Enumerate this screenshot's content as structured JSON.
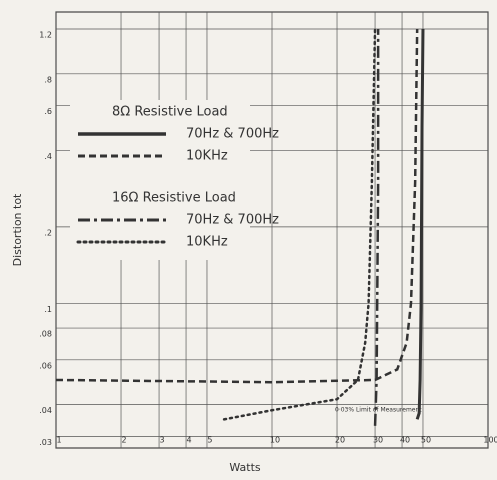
{
  "chart_data": {
    "type": "line",
    "xlabel": "Watts",
    "ylabel": "Distortion tot",
    "log_x": true,
    "log_y": true,
    "grid": true,
    "xlim": [
      1,
      100
    ],
    "ylim": [
      0.027,
      1.4
    ],
    "xticks": [
      1,
      2,
      3,
      4,
      5,
      10,
      20,
      30,
      40,
      50,
      100
    ],
    "yticks": [
      {
        "value": 0.03,
        "label": ".03"
      },
      {
        "value": 0.04,
        "label": ".04"
      },
      {
        "value": 0.06,
        "label": ".06"
      },
      {
        "value": 0.08,
        "label": ".08"
      },
      {
        "value": 0.1,
        "label": ".1"
      },
      {
        "value": 0.2,
        "label": ".2"
      },
      {
        "value": 0.4,
        "label": ".4"
      },
      {
        "value": 0.6,
        "label": ".6"
      },
      {
        "value": 0.8,
        "label": ".8"
      },
      {
        "value": 1.2,
        "label": "1.2"
      }
    ],
    "legend_titles": [
      "8Ω Resistive Load",
      "16Ω Resistive Load"
    ],
    "series": [
      {
        "name": "70Hz & 700Hz",
        "group": 0,
        "dash": "solid",
        "color": "#333",
        "x": [
          47,
          48,
          48.5,
          49,
          49.5,
          50
        ],
        "values": [
          0.035,
          0.037,
          0.05,
          0.1,
          0.5,
          1.2
        ]
      },
      {
        "name": "10KHz",
        "group": 0,
        "dash": "dash",
        "color": "#333",
        "x": [
          1,
          10,
          30,
          38,
          42,
          44,
          46,
          47
        ],
        "values": [
          0.05,
          0.049,
          0.05,
          0.055,
          0.07,
          0.1,
          0.3,
          1.2
        ]
      },
      {
        "name": "70Hz & 700Hz",
        "group": 1,
        "dash": "dashdot",
        "color": "#333",
        "x": [
          30,
          30.5,
          31,
          31
        ],
        "values": [
          0.033,
          0.05,
          0.3,
          1.2
        ]
      },
      {
        "name": "10KHz",
        "group": 1,
        "dash": "dot",
        "color": "#333",
        "x": [
          6,
          10,
          20,
          25,
          27,
          28,
          29,
          30
        ],
        "values": [
          0.035,
          0.038,
          0.042,
          0.05,
          0.07,
          0.1,
          0.3,
          1.2
        ]
      }
    ],
    "annotation": "0·03% Limit of Measurement"
  }
}
